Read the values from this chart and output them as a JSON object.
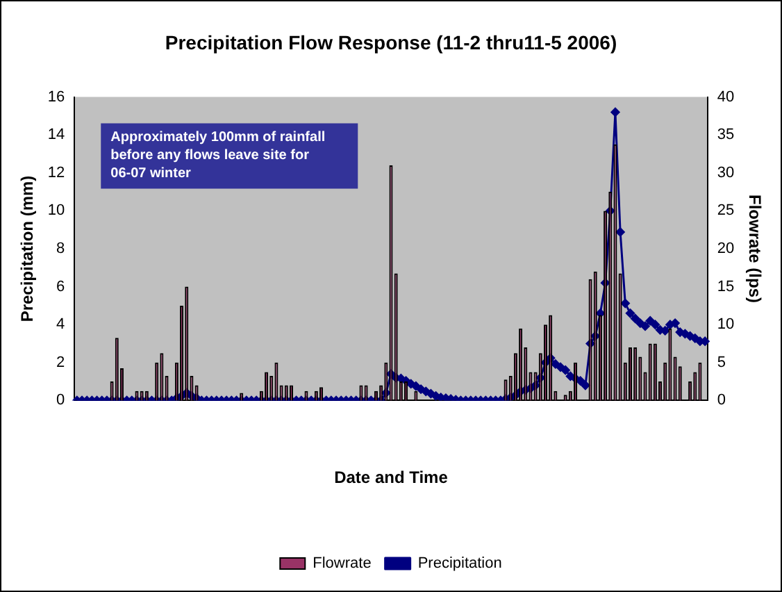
{
  "chart_data": {
    "type": "bar",
    "title": "Precipitation Flow Response (11-2 thru11-5 2006)",
    "xlabel": "Date and Time",
    "ylabel": "Precipitation (mm)",
    "y2label": "Flowrate (lps)",
    "annotations": [
      "Approximately 100mm of rainfall before any flows leave site for 06-07 winter"
    ],
    "categories": [
      null,
      null,
      null,
      null,
      null,
      null,
      null,
      null,
      null,
      null,
      null,
      null,
      null,
      null,
      null,
      null,
      null,
      null,
      null,
      null,
      null,
      null,
      null,
      null,
      null,
      null,
      null,
      null,
      null,
      null,
      null,
      null,
      null,
      null,
      null,
      null,
      null,
      null,
      null,
      null,
      null,
      null,
      null,
      null,
      null,
      null,
      null,
      null,
      null,
      null,
      null,
      null,
      null,
      null,
      null,
      null,
      null,
      null,
      null,
      null,
      null,
      null,
      null,
      null,
      null,
      null,
      null,
      null,
      null,
      null,
      null,
      null,
      null,
      null,
      null,
      null,
      null,
      null,
      null,
      null,
      null,
      null,
      null,
      null,
      null,
      null,
      null,
      null,
      null,
      null,
      null,
      null,
      null,
      null,
      null,
      null,
      null,
      null,
      null,
      null,
      null,
      null,
      null,
      null,
      null,
      null,
      null,
      null,
      null,
      null,
      null,
      null,
      null,
      null,
      null,
      null,
      null,
      null,
      null,
      null,
      null,
      null,
      null,
      null,
      null,
      null,
      null
    ],
    "series": [
      {
        "name": "Flowrate",
        "color": "#993366",
        "values": [
          0,
          0,
          0,
          0,
          0,
          0,
          0,
          1.0,
          3.3,
          1.7,
          0,
          0,
          0.5,
          0.5,
          0.5,
          0,
          2.0,
          2.5,
          1.3,
          0,
          2.0,
          5.0,
          6.0,
          1.3,
          0.8,
          0,
          0,
          0,
          0,
          0,
          0,
          0,
          0,
          0.4,
          0,
          0,
          0,
          0.5,
          1.5,
          1.3,
          2.0,
          0.8,
          0.8,
          0.8,
          0,
          0,
          0.5,
          0,
          0.5,
          0.7,
          0,
          0,
          0,
          0,
          0,
          0,
          0,
          0.8,
          0.8,
          0,
          0.5,
          0.8,
          2.0,
          12.4,
          6.7,
          1.0,
          1.0,
          0,
          0.5,
          0,
          0,
          0,
          0,
          0,
          0,
          0,
          0,
          0,
          0,
          0,
          0,
          0,
          0,
          0,
          0,
          0,
          1.1,
          1.3,
          2.5,
          3.8,
          2.8,
          1.5,
          1.5,
          2.5,
          4.0,
          4.5,
          0.5,
          0,
          0.3,
          0.5,
          2.0,
          0,
          0,
          6.4,
          6.8,
          4.5,
          10,
          11,
          13.5,
          6.7,
          2.0,
          2.8,
          2.8,
          2.3,
          1.5,
          3.0,
          3.0,
          1.0,
          2.0,
          3.8,
          2.3,
          1.8,
          0,
          1.0,
          1.5,
          2.0,
          0
        ]
      },
      {
        "name": "Precipitation",
        "type": "line",
        "axis": "y2",
        "color": "#000080",
        "marker": "diamond",
        "values": [
          0,
          0,
          0,
          0,
          0,
          0,
          0,
          0,
          0,
          0,
          0,
          0,
          0,
          0,
          0,
          0,
          0,
          0,
          0,
          0,
          0.3,
          0.6,
          1.0,
          0.6,
          0.3,
          0,
          0,
          0,
          0,
          0,
          0,
          0,
          0,
          0,
          0,
          0,
          0,
          0,
          0,
          0,
          0,
          0,
          0,
          0,
          0,
          0,
          0,
          0,
          0,
          0,
          0,
          0,
          0,
          0,
          0,
          0,
          0,
          0,
          0,
          0,
          0,
          0,
          1.0,
          3.5,
          3.0,
          2.9,
          2.6,
          2.2,
          1.9,
          1.5,
          1.2,
          0.9,
          0.6,
          0.4,
          0.3,
          0.2,
          0.1,
          0,
          0,
          0,
          0,
          0,
          0,
          0,
          0,
          0,
          0.2,
          0.4,
          0.7,
          1.2,
          1.4,
          1.6,
          2.0,
          3.0,
          5.0,
          5.6,
          4.8,
          4.4,
          4.0,
          3.2,
          2.9,
          2.6,
          2.0,
          7.5,
          8.5,
          11.5,
          15.5,
          25,
          38,
          22.2,
          12.8,
          11.5,
          10.8,
          10.2,
          9.8,
          10.5,
          10,
          9.3,
          9.2,
          10,
          10.2,
          9.0,
          8.8,
          8.5,
          8.2,
          7.8,
          7.8
        ]
      }
    ],
    "ylim": [
      0,
      16
    ],
    "yticks": [
      0,
      2,
      4,
      6,
      8,
      10,
      12,
      14,
      16
    ],
    "y2lim": [
      0,
      40
    ],
    "y2ticks": [
      0,
      5,
      10,
      15,
      20,
      25,
      30,
      35,
      40
    ],
    "grid": false,
    "legend": "bottom"
  }
}
